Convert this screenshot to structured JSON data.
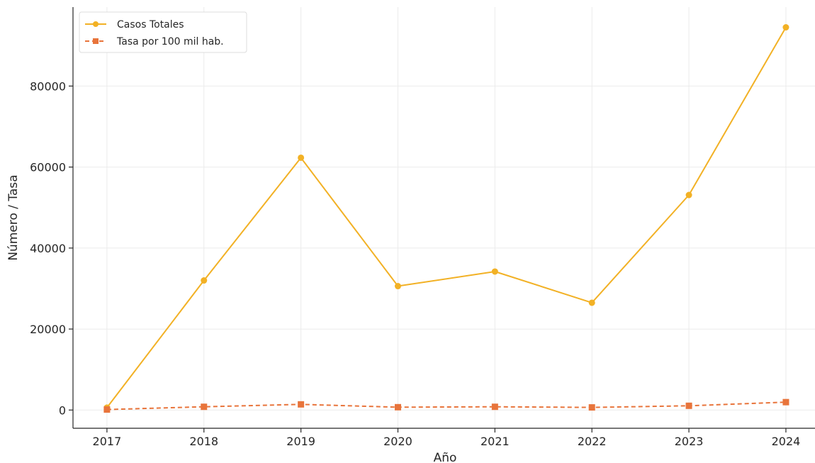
{
  "chart_data": {
    "type": "line",
    "x": [
      2017,
      2018,
      2019,
      2020,
      2021,
      2022,
      2023,
      2024
    ],
    "xlabel": "Año",
    "ylabel": "Número / Tasa",
    "xlim": [
      2016.65,
      2024.3
    ],
    "ylim": [
      -4500,
      99500
    ],
    "yticks": [
      0,
      20000,
      40000,
      60000,
      80000
    ],
    "grid": true,
    "legend_position": "top-left",
    "series": [
      {
        "name": "Casos Totales",
        "values": [
          600,
          32000,
          62300,
          30600,
          34200,
          26500,
          53100,
          94500
        ],
        "color": "#f2b125",
        "marker": "circle",
        "line_style": "solid"
      },
      {
        "name": "Tasa por 100 mil hab.",
        "values": [
          120,
          800,
          1400,
          700,
          800,
          650,
          1050,
          1950
        ],
        "color": "#e8743b",
        "marker": "square",
        "line_style": "dashed"
      }
    ]
  }
}
